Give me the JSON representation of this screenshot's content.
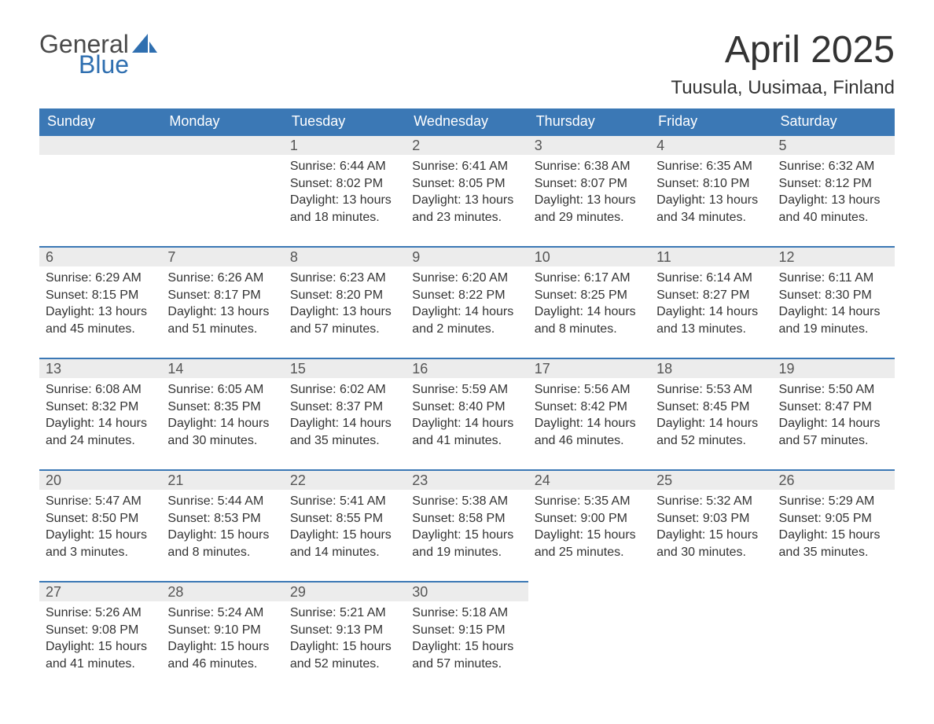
{
  "brand": {
    "word1": "General",
    "word2": "Blue"
  },
  "title": "April 2025",
  "location": "Tuusula, Uusimaa, Finland",
  "colors": {
    "header_bg": "#3b78b5",
    "header_text": "#ffffff",
    "daynum_bg": "#ececec",
    "rule": "#3b78b5",
    "text": "#333333",
    "logo_gray": "#4a4a4a",
    "logo_blue": "#2f6fb0",
    "page_bg": "#ffffff"
  },
  "weekdays": [
    "Sunday",
    "Monday",
    "Tuesday",
    "Wednesday",
    "Thursday",
    "Friday",
    "Saturday"
  ],
  "weeks": [
    [
      null,
      null,
      {
        "n": "1",
        "sunrise": "6:44 AM",
        "sunset": "8:02 PM",
        "dl_h": "13",
        "dl_m": "18"
      },
      {
        "n": "2",
        "sunrise": "6:41 AM",
        "sunset": "8:05 PM",
        "dl_h": "13",
        "dl_m": "23"
      },
      {
        "n": "3",
        "sunrise": "6:38 AM",
        "sunset": "8:07 PM",
        "dl_h": "13",
        "dl_m": "29"
      },
      {
        "n": "4",
        "sunrise": "6:35 AM",
        "sunset": "8:10 PM",
        "dl_h": "13",
        "dl_m": "34"
      },
      {
        "n": "5",
        "sunrise": "6:32 AM",
        "sunset": "8:12 PM",
        "dl_h": "13",
        "dl_m": "40"
      }
    ],
    [
      {
        "n": "6",
        "sunrise": "6:29 AM",
        "sunset": "8:15 PM",
        "dl_h": "13",
        "dl_m": "45"
      },
      {
        "n": "7",
        "sunrise": "6:26 AM",
        "sunset": "8:17 PM",
        "dl_h": "13",
        "dl_m": "51"
      },
      {
        "n": "8",
        "sunrise": "6:23 AM",
        "sunset": "8:20 PM",
        "dl_h": "13",
        "dl_m": "57"
      },
      {
        "n": "9",
        "sunrise": "6:20 AM",
        "sunset": "8:22 PM",
        "dl_h": "14",
        "dl_m": "2"
      },
      {
        "n": "10",
        "sunrise": "6:17 AM",
        "sunset": "8:25 PM",
        "dl_h": "14",
        "dl_m": "8"
      },
      {
        "n": "11",
        "sunrise": "6:14 AM",
        "sunset": "8:27 PM",
        "dl_h": "14",
        "dl_m": "13"
      },
      {
        "n": "12",
        "sunrise": "6:11 AM",
        "sunset": "8:30 PM",
        "dl_h": "14",
        "dl_m": "19"
      }
    ],
    [
      {
        "n": "13",
        "sunrise": "6:08 AM",
        "sunset": "8:32 PM",
        "dl_h": "14",
        "dl_m": "24"
      },
      {
        "n": "14",
        "sunrise": "6:05 AM",
        "sunset": "8:35 PM",
        "dl_h": "14",
        "dl_m": "30"
      },
      {
        "n": "15",
        "sunrise": "6:02 AM",
        "sunset": "8:37 PM",
        "dl_h": "14",
        "dl_m": "35"
      },
      {
        "n": "16",
        "sunrise": "5:59 AM",
        "sunset": "8:40 PM",
        "dl_h": "14",
        "dl_m": "41"
      },
      {
        "n": "17",
        "sunrise": "5:56 AM",
        "sunset": "8:42 PM",
        "dl_h": "14",
        "dl_m": "46"
      },
      {
        "n": "18",
        "sunrise": "5:53 AM",
        "sunset": "8:45 PM",
        "dl_h": "14",
        "dl_m": "52"
      },
      {
        "n": "19",
        "sunrise": "5:50 AM",
        "sunset": "8:47 PM",
        "dl_h": "14",
        "dl_m": "57"
      }
    ],
    [
      {
        "n": "20",
        "sunrise": "5:47 AM",
        "sunset": "8:50 PM",
        "dl_h": "15",
        "dl_m": "3"
      },
      {
        "n": "21",
        "sunrise": "5:44 AM",
        "sunset": "8:53 PM",
        "dl_h": "15",
        "dl_m": "8"
      },
      {
        "n": "22",
        "sunrise": "5:41 AM",
        "sunset": "8:55 PM",
        "dl_h": "15",
        "dl_m": "14"
      },
      {
        "n": "23",
        "sunrise": "5:38 AM",
        "sunset": "8:58 PM",
        "dl_h": "15",
        "dl_m": "19"
      },
      {
        "n": "24",
        "sunrise": "5:35 AM",
        "sunset": "9:00 PM",
        "dl_h": "15",
        "dl_m": "25"
      },
      {
        "n": "25",
        "sunrise": "5:32 AM",
        "sunset": "9:03 PM",
        "dl_h": "15",
        "dl_m": "30"
      },
      {
        "n": "26",
        "sunrise": "5:29 AM",
        "sunset": "9:05 PM",
        "dl_h": "15",
        "dl_m": "35"
      }
    ],
    [
      {
        "n": "27",
        "sunrise": "5:26 AM",
        "sunset": "9:08 PM",
        "dl_h": "15",
        "dl_m": "41"
      },
      {
        "n": "28",
        "sunrise": "5:24 AM",
        "sunset": "9:10 PM",
        "dl_h": "15",
        "dl_m": "46"
      },
      {
        "n": "29",
        "sunrise": "5:21 AM",
        "sunset": "9:13 PM",
        "dl_h": "15",
        "dl_m": "52"
      },
      {
        "n": "30",
        "sunrise": "5:18 AM",
        "sunset": "9:15 PM",
        "dl_h": "15",
        "dl_m": "57"
      },
      null,
      null,
      null
    ]
  ],
  "labels": {
    "sunrise": "Sunrise: ",
    "sunset": "Sunset: ",
    "daylight_pre": "Daylight: ",
    "hours_word": " hours and ",
    "minutes_word": " minutes."
  }
}
